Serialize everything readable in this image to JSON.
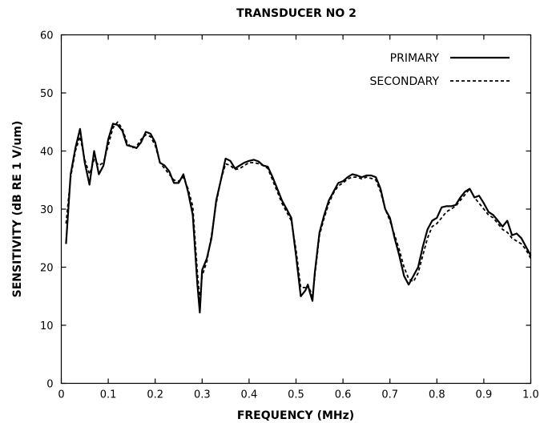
{
  "chart_data": {
    "type": "line",
    "title": "TRANSDUCER NO 2",
    "xlabel": "FREQUENCY (MHz)",
    "ylabel": "SENSITIVITY (dB RE 1 V/um)",
    "xlim": [
      0,
      1.0
    ],
    "ylim": [
      0,
      60
    ],
    "xticks": [
      0,
      0.1,
      0.2,
      0.3,
      0.4,
      0.5,
      0.6,
      0.7,
      0.8,
      0.9,
      1.0
    ],
    "xtick_labels": [
      "0",
      "0.1",
      "0.2",
      "0.3",
      "0.4",
      "0.5",
      "0.6",
      "0.7",
      "0.8",
      "0.9",
      "1.0"
    ],
    "yticks": [
      0,
      10,
      20,
      30,
      40,
      50,
      60
    ],
    "ytick_labels": [
      "0",
      "10",
      "20",
      "30",
      "40",
      "50",
      "60"
    ],
    "grid": false,
    "legend_position": "top-right",
    "series": [
      {
        "name": "PRIMARY",
        "style": "solid",
        "color": "#000000",
        "x": [
          0.01,
          0.02,
          0.03,
          0.04,
          0.05,
          0.06,
          0.07,
          0.08,
          0.09,
          0.1,
          0.11,
          0.12,
          0.13,
          0.14,
          0.15,
          0.16,
          0.17,
          0.18,
          0.19,
          0.2,
          0.21,
          0.22,
          0.23,
          0.24,
          0.25,
          0.26,
          0.27,
          0.28,
          0.29,
          0.295,
          0.3,
          0.31,
          0.32,
          0.33,
          0.34,
          0.35,
          0.36,
          0.37,
          0.38,
          0.39,
          0.4,
          0.41,
          0.42,
          0.43,
          0.44,
          0.45,
          0.46,
          0.47,
          0.48,
          0.49,
          0.5,
          0.51,
          0.52,
          0.525,
          0.53,
          0.535,
          0.54,
          0.55,
          0.56,
          0.57,
          0.58,
          0.59,
          0.6,
          0.61,
          0.62,
          0.63,
          0.64,
          0.65,
          0.66,
          0.67,
          0.68,
          0.69,
          0.7,
          0.71,
          0.72,
          0.73,
          0.74,
          0.75,
          0.76,
          0.77,
          0.78,
          0.79,
          0.8,
          0.81,
          0.82,
          0.83,
          0.84,
          0.85,
          0.86,
          0.87,
          0.88,
          0.89,
          0.9,
          0.91,
          0.92,
          0.93,
          0.94,
          0.95,
          0.96,
          0.97,
          0.98,
          0.99,
          1.0
        ],
        "y": [
          24.0,
          36.0,
          40.5,
          43.8,
          38.0,
          34.2,
          40.0,
          36.0,
          37.5,
          42.0,
          44.7,
          44.5,
          43.5,
          41.0,
          40.8,
          40.5,
          41.5,
          43.3,
          43.0,
          41.5,
          38.0,
          37.5,
          36.5,
          34.5,
          34.5,
          36.0,
          33.0,
          29.0,
          17.0,
          12.2,
          19.5,
          21.5,
          25.0,
          31.5,
          35.0,
          38.7,
          38.3,
          37.0,
          37.5,
          38.0,
          38.3,
          38.5,
          38.2,
          37.5,
          37.3,
          35.5,
          33.5,
          31.5,
          30.0,
          28.5,
          22.0,
          15.0,
          16.0,
          17.0,
          15.5,
          14.2,
          19.0,
          26.0,
          29.0,
          31.5,
          33.0,
          34.5,
          34.8,
          35.5,
          36.0,
          35.8,
          35.5,
          35.8,
          35.8,
          35.5,
          33.5,
          30.0,
          28.5,
          25.0,
          22.0,
          18.5,
          17.0,
          18.5,
          20.0,
          23.5,
          26.5,
          28.0,
          28.5,
          30.3,
          30.5,
          30.5,
          30.7,
          32.0,
          33.0,
          33.5,
          32.0,
          32.3,
          31.0,
          29.5,
          29.0,
          28.0,
          27.0,
          28.0,
          25.5,
          25.8,
          25.0,
          23.5,
          22.0
        ]
      },
      {
        "name": "SECONDARY",
        "style": "dashed",
        "color": "#000000",
        "x": [
          0.01,
          0.02,
          0.03,
          0.04,
          0.05,
          0.06,
          0.07,
          0.08,
          0.09,
          0.1,
          0.11,
          0.12,
          0.13,
          0.14,
          0.15,
          0.16,
          0.17,
          0.18,
          0.19,
          0.2,
          0.21,
          0.22,
          0.23,
          0.24,
          0.25,
          0.26,
          0.27,
          0.28,
          0.29,
          0.295,
          0.3,
          0.31,
          0.32,
          0.33,
          0.34,
          0.35,
          0.36,
          0.37,
          0.38,
          0.39,
          0.4,
          0.41,
          0.42,
          0.43,
          0.44,
          0.45,
          0.46,
          0.47,
          0.48,
          0.49,
          0.5,
          0.51,
          0.52,
          0.525,
          0.53,
          0.535,
          0.54,
          0.55,
          0.56,
          0.57,
          0.58,
          0.59,
          0.6,
          0.61,
          0.62,
          0.63,
          0.64,
          0.65,
          0.66,
          0.67,
          0.68,
          0.69,
          0.7,
          0.71,
          0.72,
          0.73,
          0.74,
          0.75,
          0.76,
          0.77,
          0.78,
          0.79,
          0.8,
          0.81,
          0.82,
          0.83,
          0.84,
          0.85,
          0.86,
          0.87,
          0.88,
          0.89,
          0.9,
          0.91,
          0.92,
          0.93,
          0.94,
          0.95,
          0.96,
          0.97,
          0.98,
          0.99,
          1.0
        ],
        "y": [
          27.5,
          35.5,
          40.0,
          42.5,
          38.5,
          36.0,
          38.5,
          37.5,
          38.0,
          41.0,
          44.0,
          45.0,
          43.8,
          41.5,
          40.5,
          40.8,
          42.0,
          42.8,
          42.5,
          41.0,
          38.0,
          37.0,
          36.0,
          35.0,
          34.8,
          35.5,
          33.5,
          30.5,
          19.0,
          14.5,
          18.5,
          21.0,
          25.5,
          31.0,
          35.0,
          37.8,
          37.5,
          36.8,
          37.0,
          37.5,
          38.0,
          38.0,
          37.8,
          37.5,
          37.0,
          35.0,
          33.0,
          31.0,
          29.5,
          28.0,
          23.0,
          16.5,
          16.5,
          17.0,
          16.0,
          15.0,
          18.5,
          25.5,
          28.5,
          31.0,
          32.8,
          34.0,
          34.5,
          35.2,
          35.5,
          35.5,
          35.2,
          35.5,
          35.3,
          35.0,
          33.0,
          30.0,
          28.0,
          25.5,
          23.0,
          20.0,
          18.0,
          17.5,
          19.0,
          22.0,
          25.0,
          27.0,
          27.5,
          28.5,
          29.5,
          30.0,
          30.5,
          31.5,
          32.5,
          33.5,
          32.0,
          31.0,
          30.0,
          29.0,
          28.5,
          27.5,
          26.5,
          26.0,
          25.0,
          24.5,
          24.0,
          23.0,
          21.5
        ]
      }
    ]
  }
}
